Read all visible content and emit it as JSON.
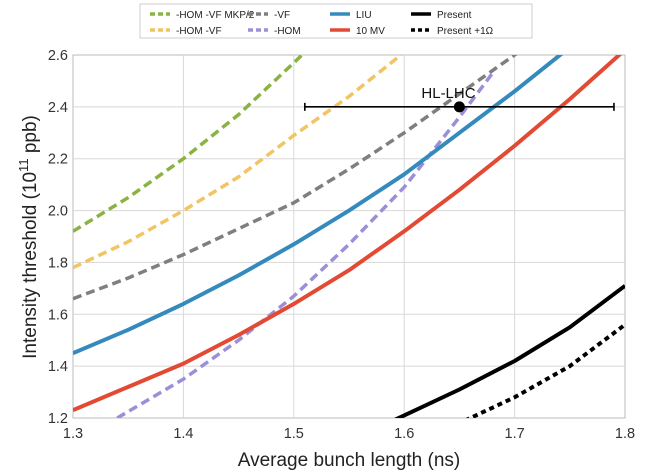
{
  "chart_data": {
    "type": "line",
    "xlabel": "Average bunch length (ns)",
    "ylabel": "Intensity threshold (10",
    "ylabel_exp": "11",
    "ylabel_tail": " ppb)",
    "xlim": [
      1.3,
      1.8
    ],
    "ylim": [
      1.2,
      2.6
    ],
    "xticks": [
      1.3,
      1.4,
      1.5,
      1.6,
      1.7,
      1.8
    ],
    "yticks": [
      1.2,
      1.4,
      1.6,
      1.8,
      2.0,
      2.2,
      2.4,
      2.6
    ],
    "xtick_labels": [
      "1.3",
      "1.4",
      "1.5",
      "1.6",
      "1.7",
      "1.8"
    ],
    "ytick_labels": [
      "1.2",
      "1.4",
      "1.6",
      "1.8",
      "2.0",
      "2.2",
      "2.4",
      "2.6"
    ],
    "grid": true,
    "legend_position": "top-center",
    "series": [
      {
        "name": "-HOM -VF MKP/2",
        "color": "#8ab342",
        "dash": "dashed",
        "x": [
          1.3,
          1.35,
          1.4,
          1.45,
          1.5,
          1.51
        ],
        "y": [
          1.92,
          2.05,
          2.2,
          2.37,
          2.57,
          2.61
        ]
      },
      {
        "name": "-HOM -VF",
        "color": "#f2c462",
        "dash": "dashed",
        "x": [
          1.3,
          1.35,
          1.4,
          1.45,
          1.5,
          1.55,
          1.6
        ],
        "y": [
          1.78,
          1.88,
          2.0,
          2.13,
          2.29,
          2.44,
          2.61
        ]
      },
      {
        "name": "-VF",
        "color": "#7f7f7f",
        "dash": "dashed",
        "x": [
          1.3,
          1.35,
          1.4,
          1.45,
          1.5,
          1.55,
          1.6,
          1.65,
          1.7,
          1.71
        ],
        "y": [
          1.66,
          1.74,
          1.83,
          1.93,
          2.03,
          2.16,
          2.3,
          2.45,
          2.6,
          2.63
        ]
      },
      {
        "name": "-HOM",
        "color": "#9b8fd8",
        "dash": "dashed",
        "x": [
          1.34,
          1.4,
          1.45,
          1.5,
          1.55,
          1.6,
          1.65,
          1.68
        ],
        "y": [
          1.2,
          1.35,
          1.5,
          1.67,
          1.87,
          2.09,
          2.36,
          2.53
        ]
      },
      {
        "name": "LIU",
        "color": "#348abd",
        "dash": "solid",
        "x": [
          1.3,
          1.35,
          1.4,
          1.45,
          1.5,
          1.55,
          1.6,
          1.65,
          1.7,
          1.75,
          1.76
        ],
        "y": [
          1.45,
          1.54,
          1.64,
          1.75,
          1.87,
          2.0,
          2.14,
          2.3,
          2.46,
          2.63,
          2.66
        ]
      },
      {
        "name": "10 MV",
        "color": "#e24a33",
        "dash": "solid",
        "x": [
          1.3,
          1.35,
          1.4,
          1.45,
          1.5,
          1.55,
          1.6,
          1.65,
          1.7,
          1.75,
          1.8
        ],
        "y": [
          1.23,
          1.32,
          1.41,
          1.52,
          1.64,
          1.77,
          1.92,
          2.08,
          2.25,
          2.43,
          2.62
        ]
      },
      {
        "name": "Present",
        "color": "#000000",
        "dash": "solid",
        "x": [
          1.59,
          1.65,
          1.7,
          1.75,
          1.8
        ],
        "y": [
          1.19,
          1.31,
          1.42,
          1.55,
          1.71
        ]
      },
      {
        "name": "Present +1Ω",
        "color": "#000000",
        "dash": "dotted",
        "x": [
          1.655,
          1.7,
          1.75,
          1.8
        ],
        "y": [
          1.19,
          1.28,
          1.4,
          1.56
        ]
      }
    ],
    "annotation": {
      "label": "HL-LHC",
      "x": 1.65,
      "y": 2.4,
      "xerr_low": 1.51,
      "xerr_high": 1.79
    }
  }
}
